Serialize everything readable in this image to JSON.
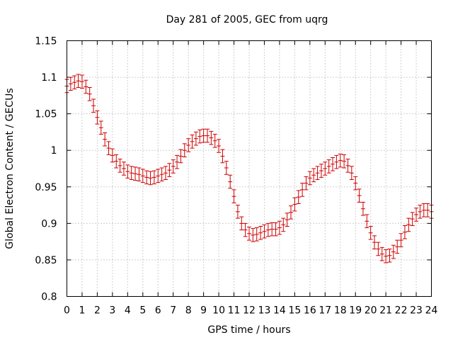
{
  "chart_data": {
    "type": "scatter",
    "title": "Day 281 of 2005, GEC from uqrg",
    "xlabel": "GPS time / hours",
    "ylabel": "Global Electron Content / GECUs",
    "xlim": [
      0,
      24
    ],
    "ylim": [
      0.8,
      1.15
    ],
    "grid": true,
    "series_color": "#cc0000",
    "xticks": [
      "0",
      "1",
      "2",
      "3",
      "4",
      "5",
      "6",
      "7",
      "8",
      "9",
      "10",
      "11",
      "12",
      "13",
      "14",
      "15",
      "16",
      "17",
      "18",
      "19",
      "20",
      "21",
      "22",
      "23",
      "24"
    ],
    "yticks": [
      "0.8",
      "0.85",
      "0.9",
      "0.95",
      "1",
      "1.05",
      "1.1",
      "1.15"
    ],
    "error": 0.009,
    "x": [
      0,
      0.25,
      0.5,
      0.75,
      1,
      1.25,
      1.5,
      1.75,
      2,
      2.25,
      2.5,
      2.75,
      3,
      3.25,
      3.5,
      3.75,
      4,
      4.25,
      4.5,
      4.75,
      5,
      5.25,
      5.5,
      5.75,
      6,
      6.25,
      6.5,
      6.75,
      7,
      7.25,
      7.5,
      7.75,
      8,
      8.25,
      8.5,
      8.75,
      9,
      9.25,
      9.5,
      9.75,
      10,
      10.25,
      10.5,
      10.75,
      11,
      11.25,
      11.5,
      11.75,
      12,
      12.25,
      12.5,
      12.75,
      13,
      13.25,
      13.5,
      13.75,
      14,
      14.25,
      14.5,
      14.75,
      15,
      15.25,
      15.5,
      15.75,
      16,
      16.25,
      16.5,
      16.75,
      17,
      17.25,
      17.5,
      17.75,
      18,
      18.25,
      18.5,
      18.75,
      19,
      19.25,
      19.5,
      19.75,
      20,
      20.25,
      20.5,
      20.75,
      21,
      21.25,
      21.5,
      21.75,
      22,
      22.25,
      22.5,
      22.75,
      23,
      23.25,
      23.5,
      23.75,
      24
    ],
    "y": [
      1.088,
      1.091,
      1.093,
      1.095,
      1.094,
      1.087,
      1.077,
      1.061,
      1.045,
      1.031,
      1.015,
      1.003,
      0.993,
      0.985,
      0.979,
      0.975,
      0.971,
      0.969,
      0.968,
      0.967,
      0.965,
      0.963,
      0.962,
      0.963,
      0.965,
      0.967,
      0.969,
      0.973,
      0.978,
      0.984,
      0.992,
      1.0,
      1.007,
      1.012,
      1.016,
      1.019,
      1.02,
      1.02,
      1.017,
      1.013,
      1.006,
      0.992,
      0.976,
      0.957,
      0.937,
      0.916,
      0.9,
      0.891,
      0.886,
      0.884,
      0.885,
      0.887,
      0.889,
      0.891,
      0.892,
      0.892,
      0.894,
      0.898,
      0.905,
      0.915,
      0.926,
      0.936,
      0.946,
      0.955,
      0.962,
      0.966,
      0.969,
      0.972,
      0.975,
      0.978,
      0.981,
      0.984,
      0.986,
      0.985,
      0.979,
      0.969,
      0.955,
      0.938,
      0.92,
      0.903,
      0.887,
      0.874,
      0.865,
      0.858,
      0.855,
      0.856,
      0.861,
      0.868,
      0.877,
      0.888,
      0.898,
      0.906,
      0.912,
      0.916,
      0.918,
      0.918,
      0.916
    ]
  }
}
